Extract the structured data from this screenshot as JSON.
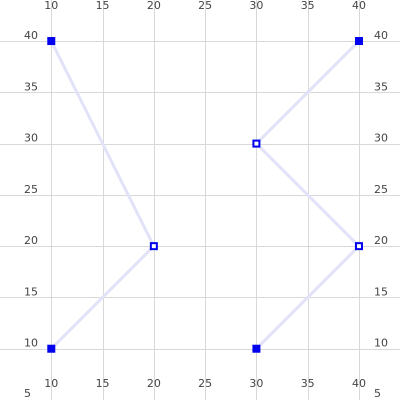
{
  "chart_data": {
    "type": "scatter",
    "title": "",
    "xlabel": "",
    "ylabel": "",
    "xlim": [
      5,
      44
    ],
    "ylim": [
      5,
      44
    ],
    "x_ticks": [
      10,
      15,
      20,
      25,
      30,
      35,
      40
    ],
    "y_ticks": [
      5,
      10,
      15,
      20,
      25,
      30,
      35,
      40
    ],
    "grid": true,
    "points": [
      {
        "x": 10,
        "y": 40,
        "style": "filled"
      },
      {
        "x": 20,
        "y": 20,
        "style": "hollow"
      },
      {
        "x": 10,
        "y": 10,
        "style": "filled"
      },
      {
        "x": 30,
        "y": 30,
        "style": "hollow"
      },
      {
        "x": 40,
        "y": 40,
        "style": "filled"
      },
      {
        "x": 40,
        "y": 20,
        "style": "hollow"
      },
      {
        "x": 30,
        "y": 10,
        "style": "filled"
      }
    ],
    "links": [
      [
        {
          "x": 10,
          "y": 40
        },
        {
          "x": 20,
          "y": 20
        },
        {
          "x": 10,
          "y": 10
        }
      ],
      [
        {
          "x": 40,
          "y": 40
        },
        {
          "x": 30,
          "y": 30
        },
        {
          "x": 40,
          "y": 20
        },
        {
          "x": 30,
          "y": 10
        }
      ]
    ],
    "colors": {
      "marker": "#0000ee",
      "link": "#e2e2f8",
      "grid": "#d9d9d9",
      "tick_text": "#444444"
    }
  }
}
